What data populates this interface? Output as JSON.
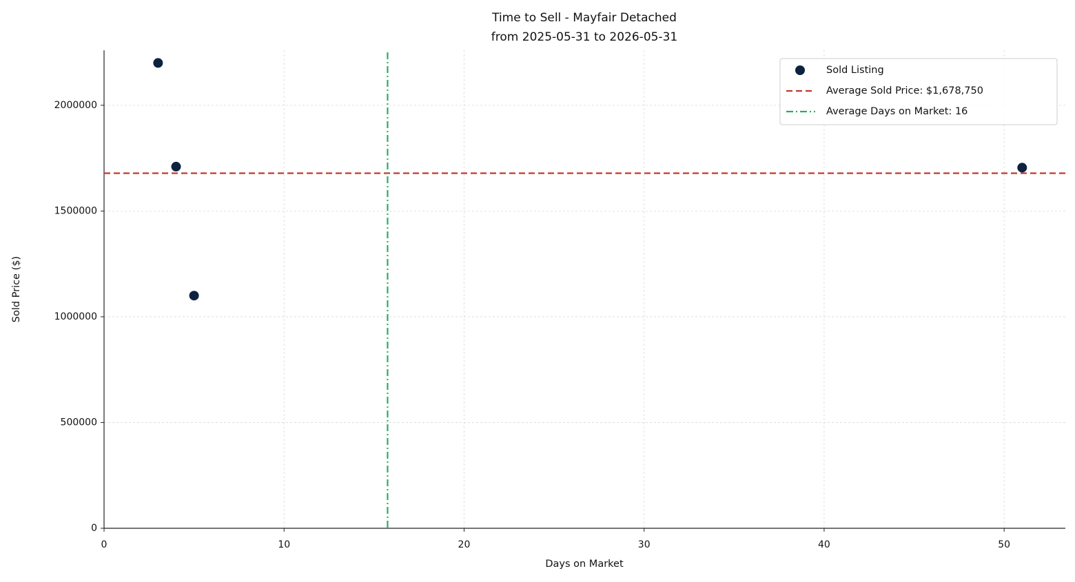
{
  "chart_data": {
    "type": "scatter",
    "title": "Time to Sell - Mayfair Detached",
    "subtitle": "from 2025-05-31 to 2026-05-31",
    "x_label": "Days on Market",
    "y_label": "Sold Price ($)",
    "x": [
      3,
      4,
      5,
      51
    ],
    "series": [
      {
        "name": "Sold Listing",
        "color": "#0d2240",
        "values": [
          2200000,
          1710000,
          1100000,
          1705000
        ]
      }
    ],
    "reference_lines": [
      {
        "name": "Average Sold Price: $1,678,750",
        "axis": "y",
        "value": 1678750,
        "color": "#c0392b",
        "dash": "dashed"
      },
      {
        "name": "Average Days on Market: 16",
        "axis": "x",
        "value": 15.75,
        "color": "#27ae60",
        "dash": "dashdot"
      }
    ],
    "xlim": [
      0,
      53.4
    ],
    "ylim": [
      0,
      2260000
    ],
    "xticks": [
      0,
      10,
      20,
      30,
      40,
      50
    ],
    "yticks": [
      0,
      500000,
      1000000,
      1500000,
      2000000
    ],
    "grid": true,
    "legend": "upper right"
  }
}
